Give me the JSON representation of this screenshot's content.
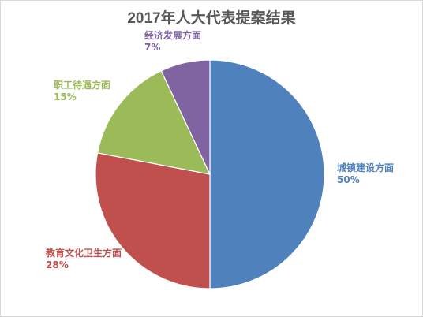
{
  "chart_data": {
    "type": "pie",
    "title": "2017年人大代表提案结果",
    "slices": [
      {
        "label": "城镇建设方面",
        "value": 50,
        "percent_label": "50%",
        "color": "#4f81bd"
      },
      {
        "label": "教育文化卫生方面",
        "value": 28,
        "percent_label": "28%",
        "color": "#c0504d"
      },
      {
        "label": "职工待遇方面",
        "value": 15,
        "percent_label": "15%",
        "color": "#9bbb59"
      },
      {
        "label": "经济发展方面",
        "value": 7,
        "percent_label": "7%",
        "color": "#8064a2"
      }
    ],
    "start_angle_deg": 0,
    "direction": "clockwise",
    "legend": "none"
  }
}
